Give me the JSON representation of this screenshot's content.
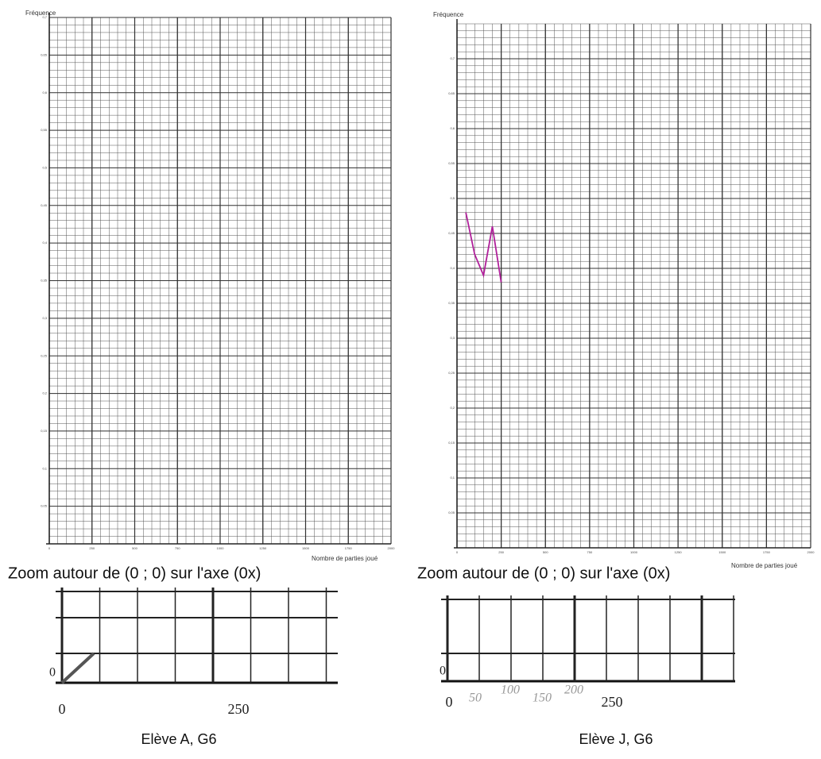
{
  "chart_data": [
    {
      "type": "line",
      "ylabel": "Fréquence",
      "xlabel": "Nombre de parties joué",
      "ylim": [
        0,
        0.7
      ],
      "xlim": [
        0,
        2000
      ],
      "yticks": [
        {
          "value": 0.05,
          "label": "0,05"
        },
        {
          "value": 0.1,
          "label": "0,1"
        },
        {
          "value": 0.15,
          "label": "0,15"
        },
        {
          "value": 0.2,
          "label": "0,2"
        },
        {
          "value": 0.25,
          "label": "0,25"
        },
        {
          "value": 0.3,
          "label": "0,3"
        },
        {
          "value": 0.35,
          "label": "0,35"
        },
        {
          "value": 0.4,
          "label": "0,4"
        },
        {
          "value": 0.45,
          "label": "0,45"
        },
        {
          "value": 0.5,
          "label": "0,5"
        },
        {
          "value": 0.55,
          "label": "0,55"
        },
        {
          "value": 0.6,
          "label": "0,6"
        },
        {
          "value": 0.65,
          "label": "0,65"
        },
        {
          "value": 0.7,
          "label": "0,7"
        }
      ],
      "xticks": [
        0,
        250,
        500,
        750,
        1000,
        1250,
        1500,
        1750,
        2000
      ],
      "series": [],
      "zoom": {
        "title": "Zoom autour de (0 ; 0) sur l'axe (0x)",
        "yticks": [
          0
        ],
        "xticks": [
          0,
          250
        ],
        "handwritten": []
      },
      "caption": "Elève A, G6"
    },
    {
      "type": "line",
      "ylabel": "Fréquence",
      "xlabel": "Nombre de parties joué",
      "ylim": [
        0,
        0.75
      ],
      "xlim": [
        0,
        2000
      ],
      "yticks": [
        {
          "value": 0.05,
          "label": "0,05"
        },
        {
          "value": 0.1,
          "label": "0,1"
        },
        {
          "value": 0.15,
          "label": "0,15"
        },
        {
          "value": 0.2,
          "label": "0,2"
        },
        {
          "value": 0.25,
          "label": "0,25"
        },
        {
          "value": 0.3,
          "label": "0,3"
        },
        {
          "value": 0.35,
          "label": "0,35"
        },
        {
          "value": 0.4,
          "label": "0,4"
        },
        {
          "value": 0.45,
          "label": "0,45"
        },
        {
          "value": 0.5,
          "label": "0,5"
        },
        {
          "value": 0.55,
          "label": "0,55"
        },
        {
          "value": 0.6,
          "label": "0,6"
        },
        {
          "value": 0.65,
          "label": "0,65"
        },
        {
          "value": 0.7,
          "label": "0,7"
        }
      ],
      "xticks": [
        0,
        250,
        500,
        750,
        1000,
        1250,
        1500,
        1750,
        2000
      ],
      "series": [
        {
          "color": "#b0209a",
          "x": [
            50,
            100,
            150,
            200,
            250
          ],
          "values": [
            0.48,
            0.42,
            0.39,
            0.46,
            0.38
          ]
        }
      ],
      "zoom": {
        "title": "Zoom autour de (0 ; 0) sur l'axe (0x)",
        "yticks": [
          0
        ],
        "xticks": [
          0,
          250
        ],
        "handwritten": [
          "50",
          "100",
          "150",
          "200"
        ]
      },
      "caption": "Elève J, G6"
    }
  ]
}
